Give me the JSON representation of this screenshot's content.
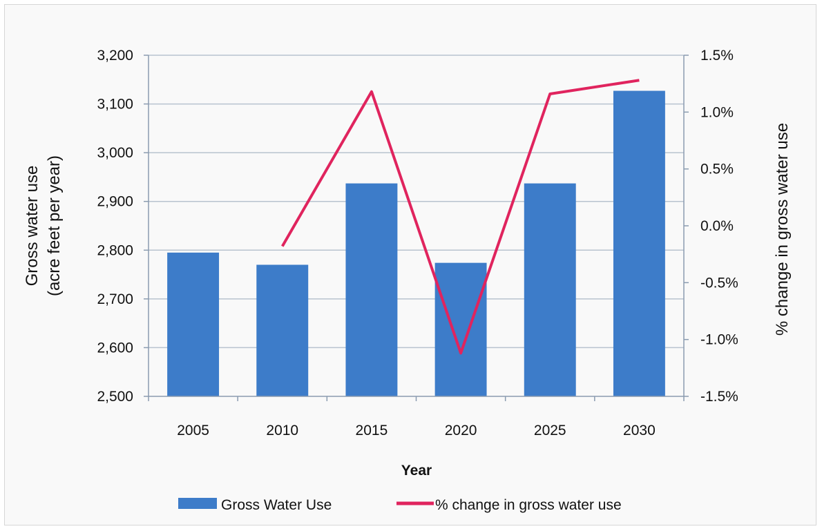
{
  "chart_data": {
    "type": "bar",
    "title": "",
    "categories": [
      "2005",
      "2010",
      "2015",
      "2020",
      "2025",
      "2030"
    ],
    "xlabel": "Year",
    "ylabel_left": [
      "Gross water use",
      "(acre feet per year)"
    ],
    "ylabel_right": "% change in gross water use",
    "ylim_left": [
      2500,
      3200
    ],
    "ylim_right": [
      -1.5,
      1.5
    ],
    "yticks_left": [
      "2,500",
      "2,600",
      "2,700",
      "2,800",
      "2,900",
      "3,000",
      "3,100",
      "3,200"
    ],
    "yticks_right": [
      "-1.5%",
      "-1.0%",
      "-0.5%",
      "0.0%",
      "0.5%",
      "1.0%",
      "1.5%"
    ],
    "grid": true,
    "legend_position": "bottom",
    "series": [
      {
        "name": "Gross Water Use",
        "kind": "bar",
        "axis": "left",
        "color": "#3d7cc9",
        "values": [
          2795,
          2770,
          2937,
          2774,
          2937,
          3127
        ]
      },
      {
        "name": "% change in gross water use",
        "kind": "line",
        "axis": "right",
        "color": "#e0245e",
        "values": [
          null,
          -0.18,
          1.18,
          -1.12,
          1.16,
          1.28
        ]
      }
    ]
  }
}
